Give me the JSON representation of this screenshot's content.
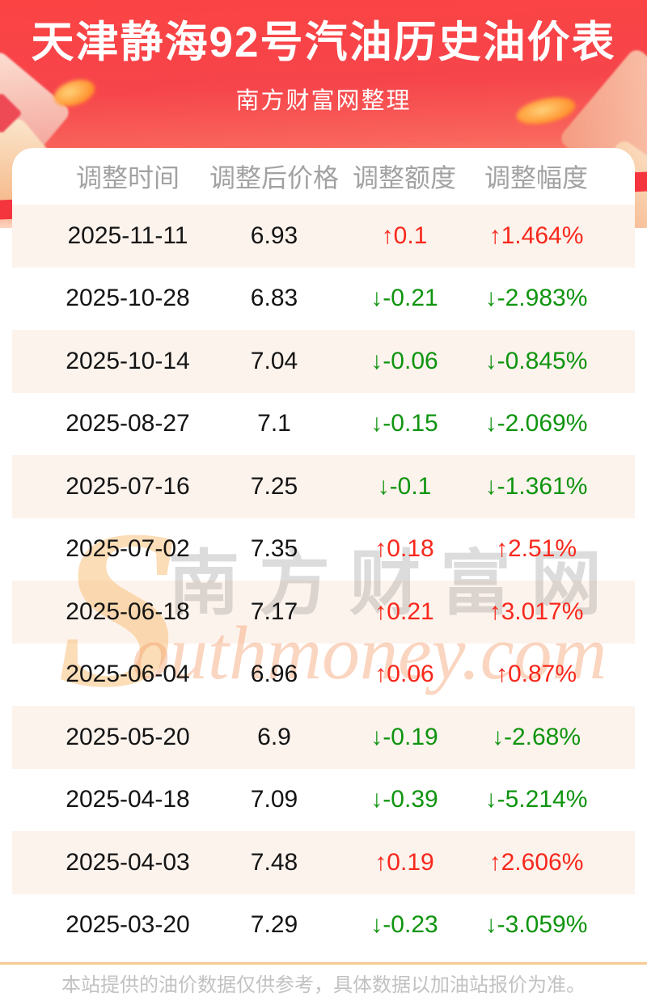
{
  "header": {
    "title": "天津静海92号汽油历史油价表",
    "subtitle": "南方财富网整理"
  },
  "table": {
    "columns": [
      "调整时间",
      "调整后价格",
      "调整额度",
      "调整幅度"
    ],
    "rows": [
      {
        "date": "2025-11-11",
        "price": "6.93",
        "change": "↑0.1",
        "percent": "↑1.464%",
        "trend": "up"
      },
      {
        "date": "2025-10-28",
        "price": "6.83",
        "change": "↓-0.21",
        "percent": "↓-2.983%",
        "trend": "down"
      },
      {
        "date": "2025-10-14",
        "price": "7.04",
        "change": "↓-0.06",
        "percent": "↓-0.845%",
        "trend": "down"
      },
      {
        "date": "2025-08-27",
        "price": "7.1",
        "change": "↓-0.15",
        "percent": "↓-2.069%",
        "trend": "down"
      },
      {
        "date": "2025-07-16",
        "price": "7.25",
        "change": "↓-0.1",
        "percent": "↓-1.361%",
        "trend": "down"
      },
      {
        "date": "2025-07-02",
        "price": "7.35",
        "change": "↑0.18",
        "percent": "↑2.51%",
        "trend": "up"
      },
      {
        "date": "2025-06-18",
        "price": "7.17",
        "change": "↑0.21",
        "percent": "↑3.017%",
        "trend": "up"
      },
      {
        "date": "2025-06-04",
        "price": "6.96",
        "change": "↑0.06",
        "percent": "↑0.87%",
        "trend": "up"
      },
      {
        "date": "2025-05-20",
        "price": "6.9",
        "change": "↓-0.19",
        "percent": "↓-2.68%",
        "trend": "down"
      },
      {
        "date": "2025-04-18",
        "price": "7.09",
        "change": "↓-0.39",
        "percent": "↓-5.214%",
        "trend": "down"
      },
      {
        "date": "2025-04-03",
        "price": "7.48",
        "change": "↑0.19",
        "percent": "↑2.606%",
        "trend": "up"
      },
      {
        "date": "2025-03-20",
        "price": "7.29",
        "change": "↓-0.23",
        "percent": "↓-3.059%",
        "trend": "down"
      }
    ]
  },
  "watermark": {
    "s": "S",
    "cn": "南方财富网",
    "en": "outhmoney.com"
  },
  "footer": {
    "note": "本站提供的油价数据仅供参考，具体数据以加油站报价为准。"
  },
  "colors": {
    "up_red": "#f8281c",
    "down_green": "#0f940f",
    "stripe": "#fdf3ed",
    "header_gray": "#a2a2a2",
    "accent_line": "#f8ca93",
    "hero_red_top": "#fb4343",
    "hero_red_bottom": "#fb9d7b"
  }
}
